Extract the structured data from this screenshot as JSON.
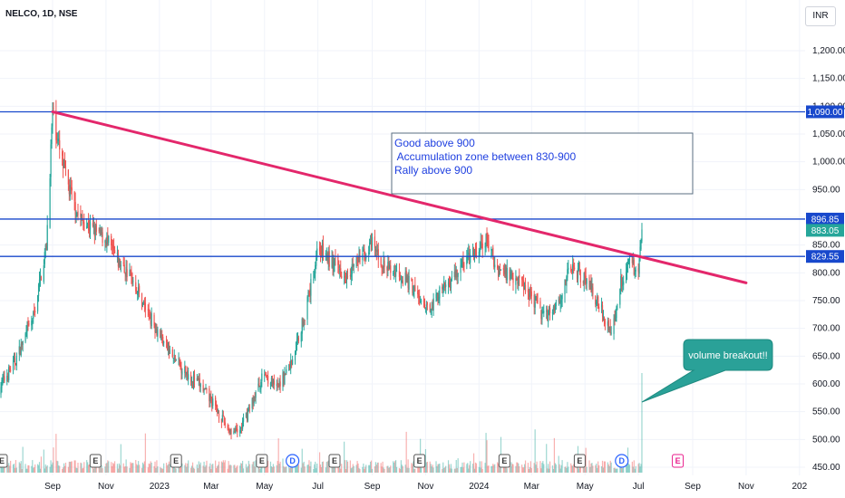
{
  "header": {
    "symbol_title": "NELCO, 1D, NSE",
    "currency": "INR"
  },
  "chart_data": {
    "type": "candlestick",
    "title": "NELCO, 1D, NSE",
    "currency": "INR",
    "ylim": [
      440,
      1250
    ],
    "y_ticks": [
      450,
      500,
      550,
      600,
      650,
      700,
      750,
      800,
      850,
      900,
      950,
      1000,
      1050,
      1100,
      1150,
      1200
    ],
    "y_tick_labels": [
      "450.00",
      "500.00",
      "550.00",
      "600.00",
      "650.00",
      "700.00",
      "750.00",
      "800.00",
      "850.00",
      "900.00",
      "950.00",
      "1,000.00",
      "1,050.00",
      "1,100.00",
      "1,150.00",
      "1,200.00"
    ],
    "x_ticks": [
      "Sep",
      "Nov",
      "2023",
      "Mar",
      "May",
      "Jul",
      "Sep",
      "Nov",
      "2024",
      "Mar",
      "May",
      "Jul",
      "Sep",
      "Nov",
      "202"
    ],
    "x_tick_dates": [
      "2022-09-01",
      "2022-11-01",
      "2023-01-01",
      "2023-03-01",
      "2023-05-01",
      "2023-07-01",
      "2023-09-01",
      "2023-11-01",
      "2024-01-01",
      "2024-03-01",
      "2024-05-01",
      "2024-07-01",
      "2024-09-01",
      "2024-11-01",
      "2025-01-01"
    ],
    "price_path": [
      [
        "2022-07-01",
        590
      ],
      [
        "2022-07-20",
        640
      ],
      [
        "2022-08-10",
        720
      ],
      [
        "2022-08-25",
        850
      ],
      [
        "2022-09-01",
        1090
      ],
      [
        "2022-09-10",
        1010
      ],
      [
        "2022-09-20",
        950
      ],
      [
        "2022-10-01",
        900
      ],
      [
        "2022-10-15",
        880
      ],
      [
        "2022-11-01",
        860
      ],
      [
        "2022-11-15",
        820
      ],
      [
        "2022-12-01",
        790
      ],
      [
        "2022-12-15",
        740
      ],
      [
        "2023-01-01",
        690
      ],
      [
        "2023-01-15",
        650
      ],
      [
        "2023-02-01",
        620
      ],
      [
        "2023-02-15",
        600
      ],
      [
        "2023-03-01",
        570
      ],
      [
        "2023-03-20",
        520
      ],
      [
        "2023-04-01",
        510
      ],
      [
        "2023-04-15",
        560
      ],
      [
        "2023-05-01",
        620
      ],
      [
        "2023-05-15",
        590
      ],
      [
        "2023-06-01",
        640
      ],
      [
        "2023-06-15",
        720
      ],
      [
        "2023-06-25",
        790
      ],
      [
        "2023-07-01",
        850
      ],
      [
        "2023-07-15",
        820
      ],
      [
        "2023-08-01",
        800
      ],
      [
        "2023-08-15",
        820
      ],
      [
        "2023-09-01",
        850
      ],
      [
        "2023-09-15",
        810
      ],
      [
        "2023-10-01",
        800
      ],
      [
        "2023-10-15",
        780
      ],
      [
        "2023-11-01",
        730
      ],
      [
        "2023-11-15",
        760
      ],
      [
        "2023-12-01",
        790
      ],
      [
        "2023-12-15",
        820
      ],
      [
        "2024-01-01",
        840
      ],
      [
        "2024-01-10",
        860
      ],
      [
        "2024-01-20",
        810
      ],
      [
        "2024-02-01",
        800
      ],
      [
        "2024-02-15",
        790
      ],
      [
        "2024-03-01",
        760
      ],
      [
        "2024-03-15",
        720
      ],
      [
        "2024-04-01",
        750
      ],
      [
        "2024-04-15",
        810
      ],
      [
        "2024-05-01",
        790
      ],
      [
        "2024-05-15",
        750
      ],
      [
        "2024-06-01",
        690
      ],
      [
        "2024-06-10",
        780
      ],
      [
        "2024-06-20",
        820
      ],
      [
        "2024-07-01",
        800
      ],
      [
        "2024-07-05",
        883
      ]
    ],
    "horizontal_levels": [
      {
        "name": "1,090.00",
        "value": 1090,
        "color": "#1848cc"
      },
      {
        "name": "896.85",
        "value": 896.85,
        "color": "#1848cc"
      },
      {
        "name": "829.55",
        "value": 829.55,
        "color": "#1848cc"
      }
    ],
    "last_price": {
      "label": "883.05",
      "value": 883.05,
      "color": "#26a69a"
    },
    "trendline": {
      "start": [
        "2022-09-01",
        1090
      ],
      "end": [
        "2024-11-01",
        782
      ],
      "color": "#e3276b"
    },
    "events": [
      {
        "type": "E",
        "date": "2022-07-05"
      },
      {
        "type": "E",
        "date": "2022-10-20"
      },
      {
        "type": "E",
        "date": "2023-01-20"
      },
      {
        "type": "E",
        "date": "2023-04-28"
      },
      {
        "type": "D",
        "date": "2023-06-02"
      },
      {
        "type": "E",
        "date": "2023-07-20"
      },
      {
        "type": "E",
        "date": "2023-10-25"
      },
      {
        "type": "E",
        "date": "2024-01-30"
      },
      {
        "type": "E",
        "date": "2024-04-25"
      },
      {
        "type": "D",
        "date": "2024-06-12"
      },
      {
        "type": "E",
        "date": "2024-08-15",
        "upcoming": true
      }
    ],
    "annotations": {
      "note_lines": [
        "Good above 900",
        " Accumulation zone between 830-900",
        "Rally above 900"
      ],
      "callout": "volume breakout!!"
    }
  }
}
